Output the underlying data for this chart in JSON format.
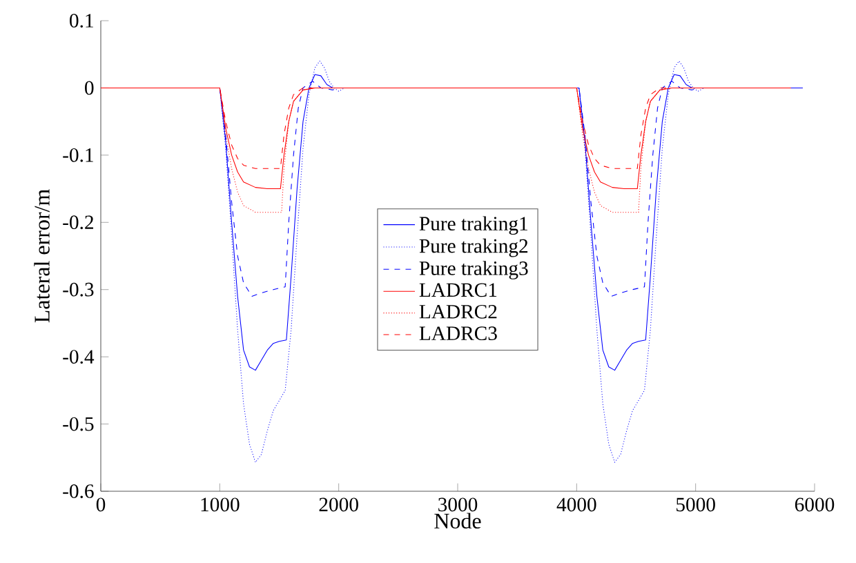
{
  "chart_data": {
    "type": "line",
    "xlabel": "Node",
    "ylabel": "Lateral error/m",
    "xlim": [
      0,
      6000
    ],
    "ylim": [
      -0.6,
      0.1
    ],
    "xticks": [
      0,
      1000,
      2000,
      3000,
      4000,
      5000,
      6000
    ],
    "yticks": [
      -0.6,
      -0.5,
      -0.4,
      -0.3,
      -0.2,
      -0.1,
      0,
      0.1
    ],
    "legend": "center",
    "marker": "none",
    "grid": false,
    "series": [
      {
        "name": "Pure traking1",
        "color": "#0000ff",
        "line_style": "solid",
        "x": [
          0,
          1000,
          1050,
          1100,
          1150,
          1200,
          1250,
          1300,
          1350,
          1400,
          1450,
          1500,
          1560,
          1600,
          1650,
          1700,
          1750,
          1800,
          1850,
          1900,
          1950,
          4020,
          4070,
          4120,
          4170,
          4220,
          4270,
          4320,
          4370,
          4420,
          4470,
          4520,
          4580,
          4620,
          4670,
          4720,
          4770,
          4820,
          4870,
          4920,
          4970,
          5900
        ],
        "values": [
          0,
          0,
          -0.08,
          -0.2,
          -0.31,
          -0.39,
          -0.415,
          -0.42,
          -0.405,
          -0.39,
          -0.38,
          -0.377,
          -0.375,
          -0.28,
          -0.15,
          -0.05,
          0,
          0.02,
          0.018,
          0.005,
          0,
          0,
          -0.08,
          -0.2,
          -0.31,
          -0.39,
          -0.415,
          -0.42,
          -0.405,
          -0.39,
          -0.38,
          -0.377,
          -0.375,
          -0.28,
          -0.15,
          -0.05,
          0,
          0.02,
          0.018,
          0.005,
          0,
          0
        ]
      },
      {
        "name": "Pure traking2",
        "color": "#0000ff",
        "line_style": "dotted",
        "x": [
          0,
          1000,
          1050,
          1100,
          1150,
          1200,
          1250,
          1300,
          1350,
          1400,
          1450,
          1500,
          1550,
          1600,
          1650,
          1700,
          1750,
          1800,
          1840,
          1880,
          1920,
          1960,
          2000,
          2050,
          4020,
          4070,
          4120,
          4170,
          4220,
          4270,
          4320,
          4370,
          4420,
          4470,
          4520,
          4570,
          4620,
          4670,
          4720,
          4770,
          4820,
          4860,
          4900,
          4940,
          4980,
          5020,
          5070,
          5900
        ],
        "values": [
          0,
          0,
          -0.09,
          -0.22,
          -0.36,
          -0.47,
          -0.53,
          -0.557,
          -0.545,
          -0.51,
          -0.48,
          -0.465,
          -0.45,
          -0.36,
          -0.22,
          -0.09,
          -0.01,
          0.03,
          0.04,
          0.03,
          0.01,
          0,
          -0.005,
          0,
          0,
          -0.09,
          -0.22,
          -0.36,
          -0.47,
          -0.53,
          -0.557,
          -0.545,
          -0.51,
          -0.48,
          -0.465,
          -0.45,
          -0.36,
          -0.22,
          -0.09,
          -0.01,
          0.03,
          0.04,
          0.03,
          0.01,
          0,
          -0.005,
          0,
          0
        ]
      },
      {
        "name": "Pure traking3",
        "color": "#0000ff",
        "line_style": "dashed",
        "x": [
          0,
          1000,
          1050,
          1100,
          1150,
          1200,
          1270,
          1350,
          1450,
          1550,
          1580,
          1620,
          1660,
          1700,
          1780,
          1850,
          1950,
          2000,
          4020,
          4070,
          4120,
          4170,
          4220,
          4290,
          4370,
          4470,
          4570,
          4600,
          4640,
          4680,
          4720,
          4800,
          4870,
          4970,
          5020,
          5900
        ],
        "values": [
          0,
          0,
          -0.07,
          -0.17,
          -0.25,
          -0.29,
          -0.31,
          -0.305,
          -0.3,
          -0.296,
          -0.2,
          -0.1,
          -0.03,
          0,
          0.01,
          0,
          -0.003,
          0,
          0,
          -0.07,
          -0.17,
          -0.25,
          -0.29,
          -0.31,
          -0.305,
          -0.3,
          -0.296,
          -0.2,
          -0.1,
          -0.03,
          0,
          0.01,
          0,
          -0.003,
          0,
          0
        ]
      },
      {
        "name": "LADRC1",
        "color": "#ff0000",
        "line_style": "solid",
        "x": [
          0,
          1000,
          1050,
          1100,
          1150,
          1200,
          1300,
          1400,
          1510,
          1540,
          1580,
          1620,
          1700,
          1800,
          4000,
          4050,
          4100,
          4150,
          4200,
          4300,
          4400,
          4510,
          4540,
          4580,
          4620,
          4700,
          4800,
          5800
        ],
        "values": [
          0,
          0,
          -0.06,
          -0.1,
          -0.125,
          -0.14,
          -0.148,
          -0.15,
          -0.15,
          -0.1,
          -0.05,
          -0.02,
          -0.003,
          0,
          0,
          -0.06,
          -0.1,
          -0.125,
          -0.14,
          -0.148,
          -0.15,
          -0.15,
          -0.1,
          -0.05,
          -0.02,
          -0.003,
          0,
          0
        ]
      },
      {
        "name": "LADRC2",
        "color": "#ff0000",
        "line_style": "dotted",
        "x": [
          0,
          1000,
          1050,
          1100,
          1150,
          1200,
          1300,
          1520,
          1540,
          1580,
          1620,
          1700,
          1800,
          4000,
          4050,
          4100,
          4150,
          4200,
          4300,
          4520,
          4540,
          4580,
          4620,
          4700,
          4800,
          5800
        ],
        "values": [
          0,
          0,
          -0.07,
          -0.12,
          -0.155,
          -0.175,
          -0.185,
          -0.185,
          -0.12,
          -0.05,
          -0.02,
          -0.003,
          0,
          0,
          -0.07,
          -0.12,
          -0.155,
          -0.175,
          -0.185,
          -0.185,
          -0.12,
          -0.05,
          -0.02,
          -0.003,
          0,
          0
        ]
      },
      {
        "name": "LADRC3",
        "color": "#ff0000",
        "line_style": "dashed",
        "x": [
          0,
          1000,
          1050,
          1100,
          1150,
          1200,
          1300,
          1510,
          1540,
          1580,
          1620,
          1700,
          4000,
          4050,
          4100,
          4150,
          4200,
          4300,
          4510,
          4540,
          4580,
          4620,
          4700,
          5800
        ],
        "values": [
          0,
          0,
          -0.05,
          -0.085,
          -0.105,
          -0.115,
          -0.12,
          -0.12,
          -0.07,
          -0.03,
          -0.01,
          0,
          0,
          -0.05,
          -0.085,
          -0.105,
          -0.115,
          -0.12,
          -0.12,
          -0.07,
          -0.03,
          -0.01,
          0,
          0
        ]
      }
    ]
  }
}
